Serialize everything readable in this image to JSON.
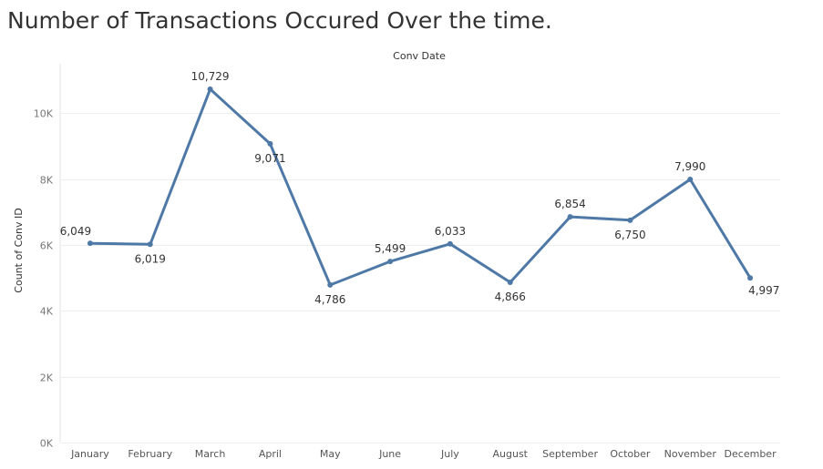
{
  "title": "Number of Transactions Occured Over the time.",
  "chart_data": {
    "type": "line",
    "title": "Number of Transactions Occured Over the time.",
    "xlabel": "Conv Date",
    "ylabel": "Count of Conv ID",
    "categories": [
      "January",
      "February",
      "March",
      "April",
      "May",
      "June",
      "July",
      "August",
      "September",
      "October",
      "November",
      "December"
    ],
    "values": [
      6049,
      6019,
      10729,
      9071,
      4786,
      5499,
      6033,
      4866,
      6854,
      6750,
      7990,
      4997
    ],
    "data_labels": [
      "6,049",
      "6,019",
      "10,729",
      "9,071",
      "4,786",
      "5,499",
      "6,033",
      "4,866",
      "6,854",
      "6,750",
      "7,990",
      "4,997"
    ],
    "y_ticks": [
      0,
      2000,
      4000,
      6000,
      8000,
      10000
    ],
    "y_tick_labels": [
      "0K",
      "2K",
      "4K",
      "6K",
      "8K",
      "10K"
    ],
    "ylim": [
      0,
      11500
    ],
    "grid": true,
    "legend": "none",
    "line_color": "#4e79a7"
  }
}
